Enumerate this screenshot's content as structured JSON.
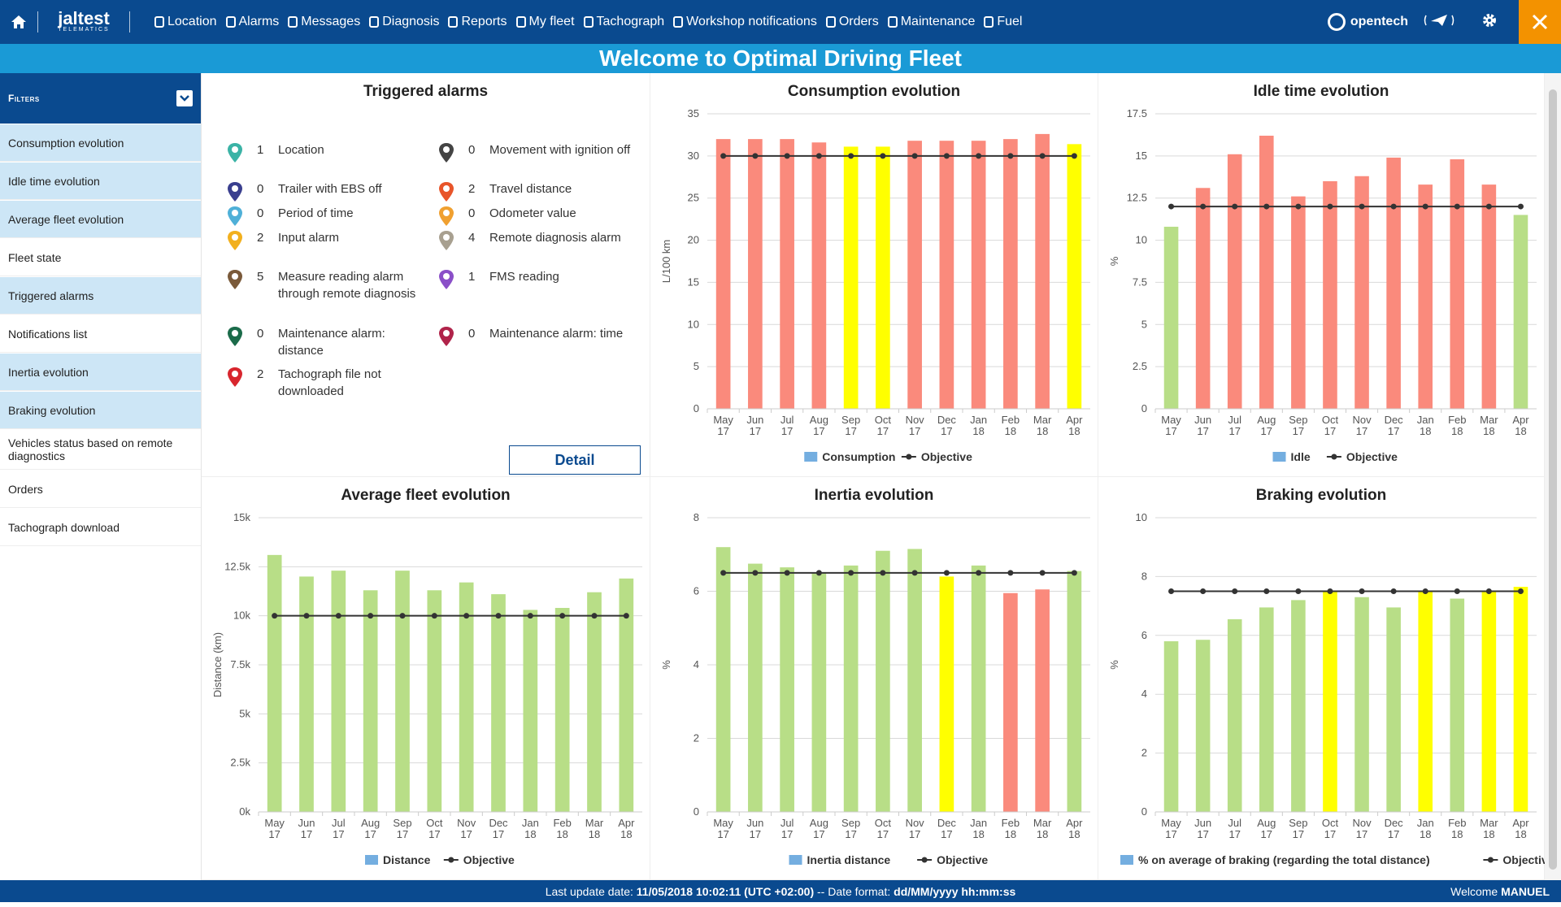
{
  "topbar": {
    "logo": "jaltest",
    "logo_sub": "TELEMATICS",
    "nav": [
      "Location",
      "Alarms",
      "Messages",
      "Diagnosis",
      "Reports",
      "My fleet",
      "Tachograph",
      "Workshop notifications",
      "Orders",
      "Maintenance",
      "Fuel"
    ],
    "brand": "opentech"
  },
  "welcome": "Welcome to Optimal Driving Fleet",
  "filters_label": "Filters",
  "sidebar": [
    "Consumption evolution",
    "Idle time evolution",
    "Average fleet evolution",
    "Fleet state",
    "Triggered alarms",
    "Notifications list",
    "Inertia evolution",
    "Braking evolution",
    "Vehicles status based on remote diagnostics",
    "Orders",
    "Tachograph download"
  ],
  "alarms_panel": {
    "title": "Triggered alarms",
    "detail_label": "Detail",
    "left": [
      {
        "count": "1",
        "label": "Location",
        "color": "#3bb3a6"
      },
      {
        "count": "0",
        "label": "Trailer with EBS off",
        "color": "#3a3f8f"
      },
      {
        "count": "0",
        "label": "Period of time",
        "color": "#4fb0d8"
      },
      {
        "count": "2",
        "label": "Input alarm",
        "color": "#f2b01e"
      },
      {
        "count": "5",
        "label": "Measure reading alarm through remote diagnosis",
        "color": "#7a5a3a"
      },
      {
        "count": "0",
        "label": "Maintenance alarm: distance",
        "color": "#1b6b4a"
      },
      {
        "count": "2",
        "label": "Tachograph file not downloaded",
        "color": "#d8262e"
      }
    ],
    "right": [
      {
        "count": "0",
        "label": "Movement with ignition off",
        "color": "#444444"
      },
      {
        "count": "2",
        "label": "Travel distance",
        "color": "#e8552a"
      },
      {
        "count": "0",
        "label": "Odometer value",
        "color": "#f0a030"
      },
      {
        "count": "4",
        "label": "Remote diagnosis alarm",
        "color": "#a8a090"
      },
      {
        "count": "1",
        "label": "FMS reading",
        "color": "#8a4fc8"
      },
      {
        "count": "0",
        "label": "Maintenance alarm: time",
        "color": "#b0234a"
      }
    ]
  },
  "chart_data": [
    {
      "type": "bar",
      "title": "Consumption evolution",
      "categories": [
        "May 17",
        "Jun 17",
        "Jul 17",
        "Aug 17",
        "Sep 17",
        "Oct 17",
        "Nov 17",
        "Dec 17",
        "Jan 18",
        "Feb 18",
        "Mar 18",
        "Apr 18"
      ],
      "series": [
        {
          "name": "Consumption",
          "values": [
            32,
            32,
            32,
            31.6,
            31.1,
            31.1,
            31.8,
            31.8,
            31.8,
            32,
            32.6,
            31.4
          ],
          "colors": [
            "#fa8a7c",
            "#fa8a7c",
            "#fa8a7c",
            "#fa8a7c",
            "#ffff00",
            "#ffff00",
            "#fa8a7c",
            "#fa8a7c",
            "#fa8a7c",
            "#fa8a7c",
            "#fa8a7c",
            "#ffff00"
          ]
        },
        {
          "name": "Objective",
          "values": [
            30,
            30,
            30,
            30,
            30,
            30,
            30,
            30,
            30,
            30,
            30,
            30
          ]
        }
      ],
      "ylabel": "L/100 km",
      "yticks": [
        "0",
        "5",
        "10",
        "15",
        "20",
        "25",
        "30",
        "35"
      ],
      "ylim": [
        0,
        35
      ]
    },
    {
      "type": "bar",
      "title": "Idle time evolution",
      "categories": [
        "May 17",
        "Jun 17",
        "Jul 17",
        "Aug 17",
        "Sep 17",
        "Oct 17",
        "Nov 17",
        "Dec 17",
        "Jan 18",
        "Feb 18",
        "Mar 18",
        "Apr 18"
      ],
      "series": [
        {
          "name": "Idle",
          "values": [
            10.8,
            13.1,
            15.1,
            16.2,
            12.6,
            13.5,
            13.8,
            14.9,
            13.3,
            14.8,
            13.3,
            11.5
          ],
          "colors": [
            "#b8de87",
            "#fa8a7c",
            "#fa8a7c",
            "#fa8a7c",
            "#fa8a7c",
            "#fa8a7c",
            "#fa8a7c",
            "#fa8a7c",
            "#fa8a7c",
            "#fa8a7c",
            "#fa8a7c",
            "#b8de87"
          ]
        },
        {
          "name": "Objective",
          "values": [
            12,
            12,
            12,
            12,
            12,
            12,
            12,
            12,
            12,
            12,
            12,
            12
          ]
        }
      ],
      "ylabel": "%",
      "yticks": [
        "0",
        "2.5",
        "5",
        "7.5",
        "10",
        "12.5",
        "15",
        "17.5"
      ],
      "ylim": [
        0,
        17.5
      ]
    },
    {
      "type": "bar",
      "title": "Average fleet evolution",
      "categories": [
        "May 17",
        "Jun 17",
        "Jul 17",
        "Aug 17",
        "Sep 17",
        "Oct 17",
        "Nov 17",
        "Dec 17",
        "Jan 18",
        "Feb 18",
        "Mar 18",
        "Apr 18"
      ],
      "series": [
        {
          "name": "Distance",
          "values": [
            13100,
            12000,
            12300,
            11300,
            12300,
            11300,
            11700,
            11100,
            10300,
            10400,
            11200,
            11900
          ],
          "colors": [
            "#b8de87",
            "#b8de87",
            "#b8de87",
            "#b8de87",
            "#b8de87",
            "#b8de87",
            "#b8de87",
            "#b8de87",
            "#b8de87",
            "#b8de87",
            "#b8de87",
            "#b8de87"
          ]
        },
        {
          "name": "Objective",
          "values": [
            10000,
            10000,
            10000,
            10000,
            10000,
            10000,
            10000,
            10000,
            10000,
            10000,
            10000,
            10000
          ]
        }
      ],
      "ylabel": "Distance (km)",
      "yticks": [
        "0k",
        "2.5k",
        "5k",
        "7.5k",
        "10k",
        "12.5k",
        "15k"
      ],
      "ylim": [
        0,
        15000
      ]
    },
    {
      "type": "bar",
      "title": "Inertia evolution",
      "categories": [
        "May 17",
        "Jun 17",
        "Jul 17",
        "Aug 17",
        "Sep 17",
        "Oct 17",
        "Nov 17",
        "Dec 17",
        "Jan 18",
        "Feb 18",
        "Mar 18",
        "Apr 18"
      ],
      "series": [
        {
          "name": "Inertia distance",
          "values": [
            7.2,
            6.75,
            6.65,
            6.5,
            6.7,
            7.1,
            7.15,
            6.4,
            6.7,
            5.95,
            6.05,
            6.55
          ],
          "colors": [
            "#b8de87",
            "#b8de87",
            "#b8de87",
            "#b8de87",
            "#b8de87",
            "#b8de87",
            "#b8de87",
            "#ffff00",
            "#b8de87",
            "#fa8a7c",
            "#fa8a7c",
            "#b8de87"
          ]
        },
        {
          "name": "Objective",
          "values": [
            6.5,
            6.5,
            6.5,
            6.5,
            6.5,
            6.5,
            6.5,
            6.5,
            6.5,
            6.5,
            6.5,
            6.5
          ]
        }
      ],
      "ylabel": "%",
      "yticks": [
        "0",
        "2",
        "4",
        "6",
        "8"
      ],
      "ylim": [
        0,
        8
      ]
    },
    {
      "type": "bar",
      "title": "Braking evolution",
      "categories": [
        "May 17",
        "Jun 17",
        "Jul 17",
        "Aug 17",
        "Sep 17",
        "Oct 17",
        "Nov 17",
        "Dec 17",
        "Jan 18",
        "Feb 18",
        "Mar 18",
        "Apr 18"
      ],
      "series": [
        {
          "name": "% on average of braking (regarding the total distance)",
          "values": [
            5.8,
            5.85,
            6.55,
            6.95,
            7.2,
            7.5,
            7.3,
            6.95,
            7.5,
            7.25,
            7.5,
            7.65
          ],
          "colors": [
            "#b8de87",
            "#b8de87",
            "#b8de87",
            "#b8de87",
            "#b8de87",
            "#ffff00",
            "#b8de87",
            "#b8de87",
            "#ffff00",
            "#b8de87",
            "#ffff00",
            "#ffff00"
          ]
        },
        {
          "name": "Objective",
          "values": [
            7.5,
            7.5,
            7.5,
            7.5,
            7.5,
            7.5,
            7.5,
            7.5,
            7.5,
            7.5,
            7.5,
            7.5
          ]
        }
      ],
      "ylabel": "%",
      "yticks": [
        "0",
        "2",
        "4",
        "6",
        "8",
        "10"
      ],
      "ylim": [
        0,
        10
      ]
    }
  ],
  "footer": {
    "update_prefix": "Last update date:",
    "update_value": "11/05/2018 10:02:11 (UTC +02:00)",
    "format_prefix": "-- Date format:",
    "format_value": "dd/MM/yyyy hh:mm:ss",
    "welcome_prefix": "Welcome",
    "user": "MANUEL"
  }
}
